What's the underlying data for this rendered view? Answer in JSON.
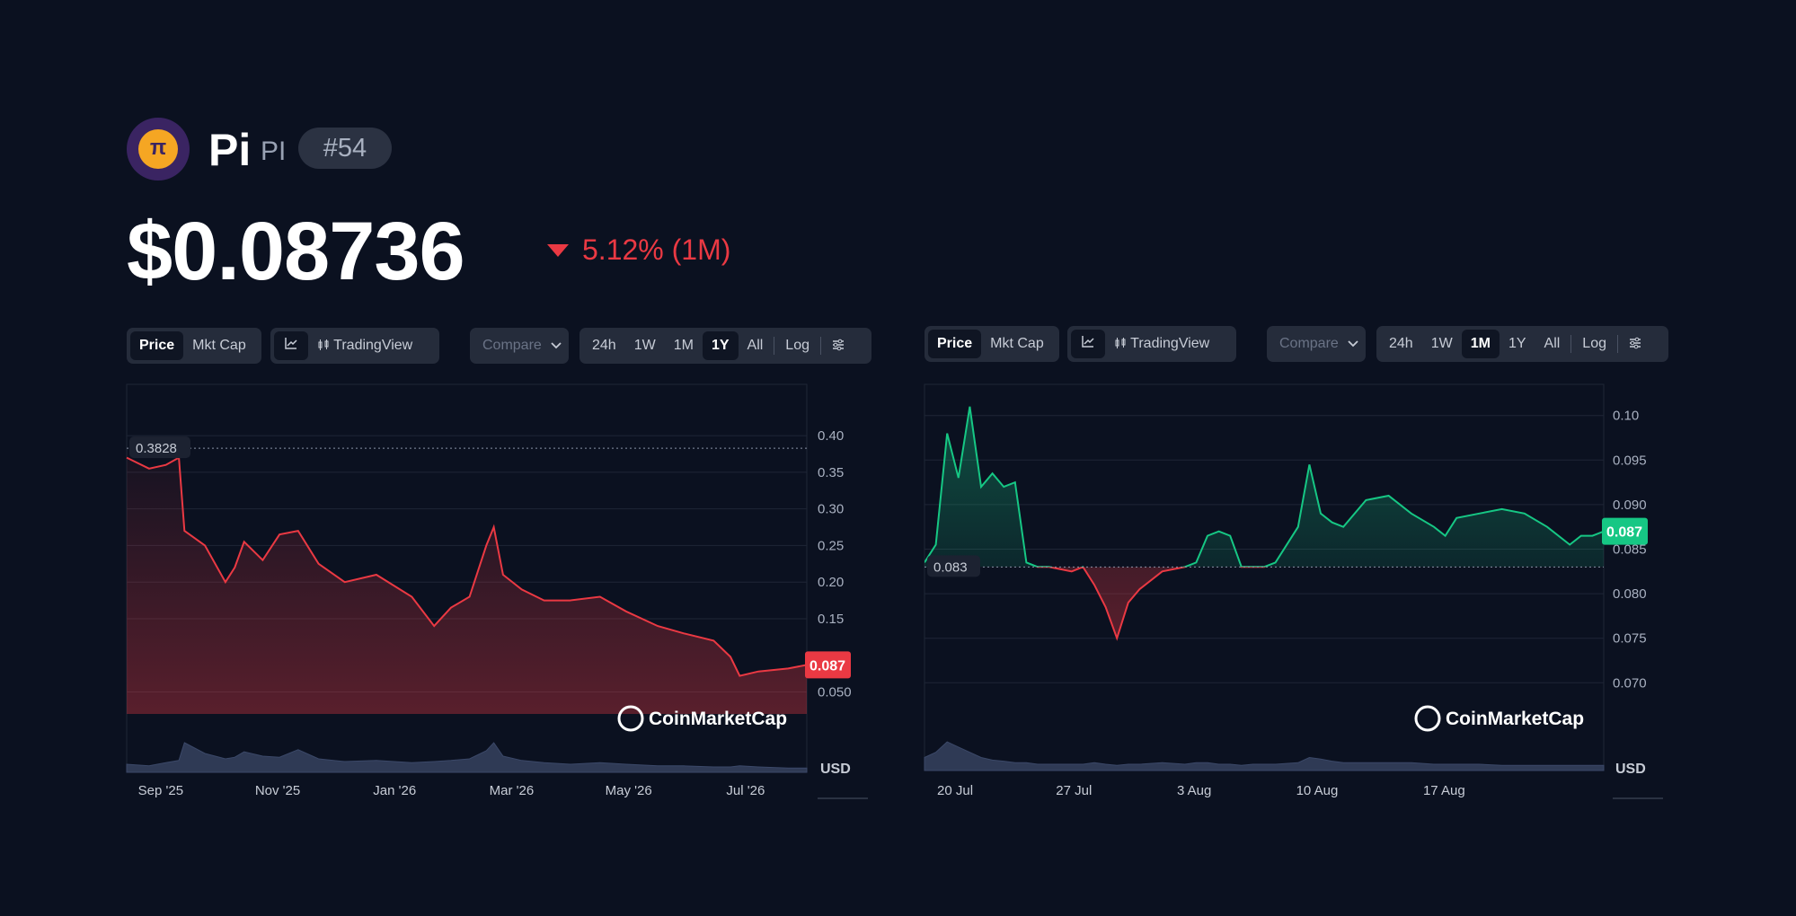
{
  "coin": {
    "name": "Pi",
    "symbol": "PI",
    "rank": "#54",
    "logo_glyph": "π",
    "price": "$0.08736",
    "change": "5.12% (1M)",
    "change_color": "#ea3943"
  },
  "toolbar_left": {
    "price": "Price",
    "mkt_cap": "Mkt Cap",
    "tradingview": "TradingView",
    "compare": "Compare",
    "ranges": [
      "24h",
      "1W",
      "1M",
      "1Y",
      "All"
    ],
    "log": "Log",
    "active_range": "1Y"
  },
  "toolbar_right": {
    "price": "Price",
    "mkt_cap": "Mkt Cap",
    "tradingview": "TradingView",
    "compare": "Compare",
    "ranges": [
      "24h",
      "1W",
      "1M",
      "1Y",
      "All"
    ],
    "log": "Log",
    "active_range": "1M"
  },
  "watermark": "CoinMarketCap",
  "chart_data": [
    {
      "type": "area",
      "range": "1Y",
      "currency": "USD",
      "color": "#ea3943",
      "y_ticks": [
        "0.40",
        "0.35",
        "0.30",
        "0.25",
        "0.20",
        "0.15",
        "0.050"
      ],
      "ylim": [
        0.02,
        0.47
      ],
      "x_ticks": [
        "Sep '25",
        "Nov '25",
        "Jan '26",
        "Mar '26",
        "May '26",
        "Jul '26"
      ],
      "open_reference": "0.3828",
      "current_label": "0.087",
      "x": [
        "2025-08-20",
        "2025-09-01",
        "2025-09-10",
        "2025-09-17",
        "2025-09-20",
        "2025-10-01",
        "2025-10-12",
        "2025-10-17",
        "2025-10-22",
        "2025-11-01",
        "2025-11-10",
        "2025-11-20",
        "2025-12-01",
        "2025-12-15",
        "2026-01-01",
        "2026-01-20",
        "2026-02-01",
        "2026-02-10",
        "2026-02-20",
        "2026-03-01",
        "2026-03-05",
        "2026-03-10",
        "2026-03-20",
        "2026-04-01",
        "2026-04-15",
        "2026-05-01",
        "2026-05-15",
        "2026-06-01",
        "2026-06-15",
        "2026-07-01",
        "2026-07-10",
        "2026-07-15",
        "2026-07-25",
        "2026-08-10",
        "2026-08-20"
      ],
      "values": [
        0.37,
        0.355,
        0.36,
        0.37,
        0.27,
        0.25,
        0.2,
        0.22,
        0.255,
        0.23,
        0.265,
        0.27,
        0.225,
        0.2,
        0.21,
        0.18,
        0.14,
        0.165,
        0.18,
        0.25,
        0.275,
        0.21,
        0.19,
        0.175,
        0.175,
        0.18,
        0.16,
        0.14,
        0.13,
        0.12,
        0.098,
        0.072,
        0.078,
        0.082,
        0.087
      ],
      "volume": [
        0.15,
        0.12,
        0.18,
        0.22,
        0.55,
        0.35,
        0.25,
        0.28,
        0.38,
        0.3,
        0.28,
        0.42,
        0.25,
        0.2,
        0.22,
        0.18,
        0.2,
        0.22,
        0.25,
        0.4,
        0.55,
        0.3,
        0.22,
        0.18,
        0.15,
        0.18,
        0.15,
        0.12,
        0.12,
        0.1,
        0.1,
        0.12,
        0.1,
        0.08,
        0.08
      ]
    },
    {
      "type": "area",
      "range": "1M",
      "currency": "USD",
      "color_up": "#16c784",
      "color_down": "#ea3943",
      "y_ticks": [
        "0.10",
        "0.095",
        "0.090",
        "0.085",
        "0.080",
        "0.075",
        "0.070"
      ],
      "ylim": [
        0.0665,
        0.1035
      ],
      "x_ticks": [
        "20 Jul",
        "27 Jul",
        "3 Aug",
        "10 Aug",
        "17 Aug"
      ],
      "open_reference": "0.083",
      "current_label": "0.087",
      "x": [
        "2026-07-19 12:00",
        "2026-07-20 00:00",
        "2026-07-20 12:00",
        "2026-07-21 00:00",
        "2026-07-21 12:00",
        "2026-07-22 00:00",
        "2026-07-22 12:00",
        "2026-07-23 00:00",
        "2026-07-23 12:00",
        "2026-07-24 00:00",
        "2026-07-24 12:00",
        "2026-07-25 00:00",
        "2026-07-26 00:00",
        "2026-07-26 12:00",
        "2026-07-27 00:00",
        "2026-07-27 12:00",
        "2026-07-28 00:00",
        "2026-07-28 12:00",
        "2026-07-29 00:00",
        "2026-07-30 00:00",
        "2026-07-31 00:00",
        "2026-07-31 12:00",
        "2026-08-01 00:00",
        "2026-08-01 12:00",
        "2026-08-02 00:00",
        "2026-08-02 12:00",
        "2026-08-03 00:00",
        "2026-08-03 12:00",
        "2026-08-04 00:00",
        "2026-08-05 00:00",
        "2026-08-05 12:00",
        "2026-08-06 00:00",
        "2026-08-06 12:00",
        "2026-08-07 00:00",
        "2026-08-08 00:00",
        "2026-08-09 00:00",
        "2026-08-10 00:00",
        "2026-08-11 00:00",
        "2026-08-11 12:00",
        "2026-08-12 00:00",
        "2026-08-13 00:00",
        "2026-08-14 00:00",
        "2026-08-15 00:00",
        "2026-08-16 00:00",
        "2026-08-17 00:00",
        "2026-08-17 12:00",
        "2026-08-18 00:00",
        "2026-08-18 12:00"
      ],
      "values": [
        0.0835,
        0.0855,
        0.098,
        0.093,
        0.101,
        0.092,
        0.0935,
        0.092,
        0.0925,
        0.0835,
        0.083,
        0.083,
        0.0825,
        0.083,
        0.081,
        0.0785,
        0.075,
        0.079,
        0.0805,
        0.0825,
        0.083,
        0.0835,
        0.0865,
        0.087,
        0.0865,
        0.083,
        0.083,
        0.083,
        0.0835,
        0.0875,
        0.0945,
        0.089,
        0.088,
        0.0875,
        0.0905,
        0.091,
        0.089,
        0.0875,
        0.0865,
        0.0885,
        0.089,
        0.0895,
        0.089,
        0.0875,
        0.0855,
        0.0865,
        0.0865,
        0.087
      ],
      "volume": [
        0.25,
        0.35,
        0.55,
        0.45,
        0.35,
        0.25,
        0.2,
        0.18,
        0.15,
        0.15,
        0.12,
        0.12,
        0.12,
        0.12,
        0.15,
        0.12,
        0.1,
        0.12,
        0.12,
        0.15,
        0.12,
        0.15,
        0.15,
        0.12,
        0.12,
        0.1,
        0.12,
        0.12,
        0.12,
        0.15,
        0.25,
        0.22,
        0.18,
        0.15,
        0.15,
        0.15,
        0.15,
        0.12,
        0.12,
        0.12,
        0.12,
        0.1,
        0.1,
        0.1,
        0.1,
        0.1,
        0.1,
        0.1
      ]
    }
  ]
}
